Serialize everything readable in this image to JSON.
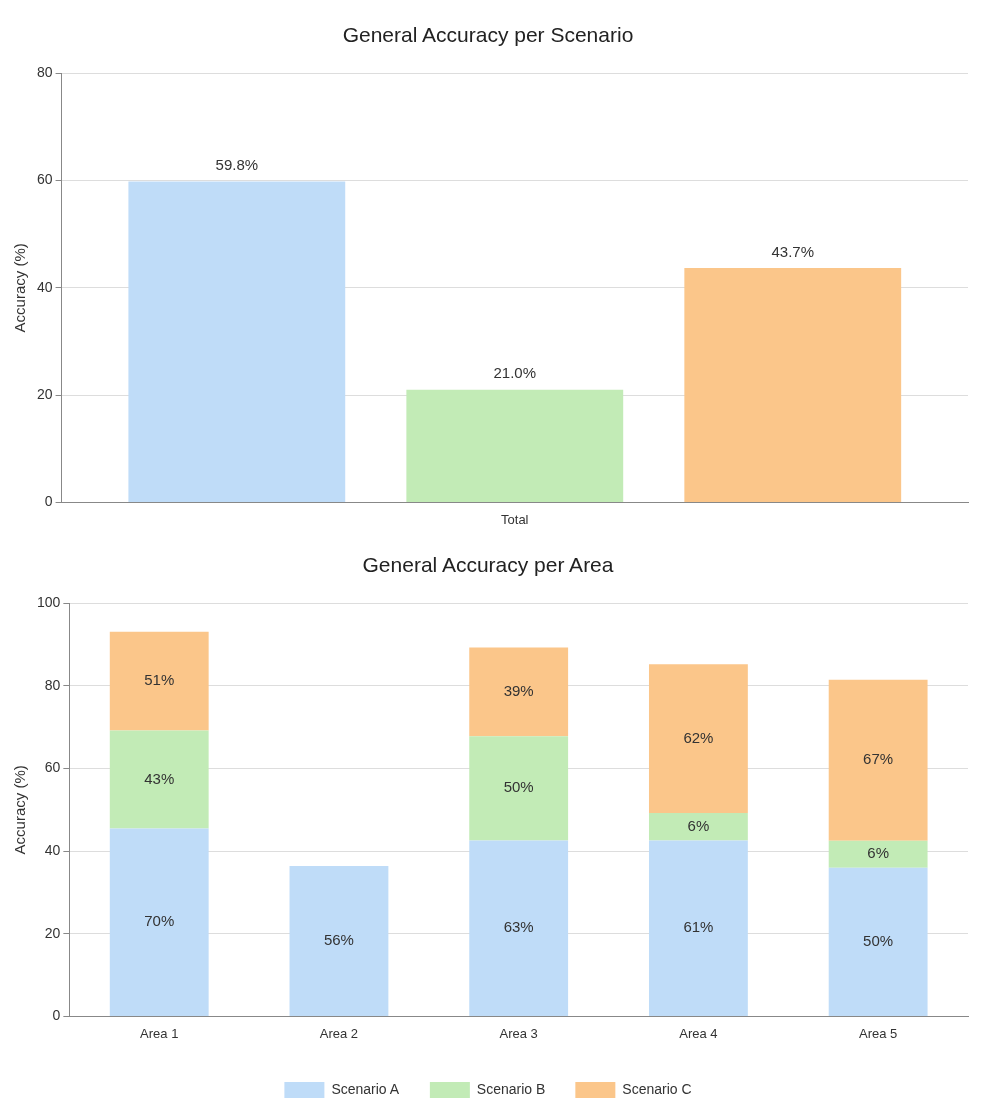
{
  "chart_data": [
    {
      "type": "bar",
      "title": "General Accuracy per Scenario",
      "ylabel": "Accuracy (%)",
      "categories": [
        "Total"
      ],
      "ylim": [
        0,
        80
      ],
      "yticks": [
        0,
        20,
        40,
        60,
        80
      ],
      "grid": "y",
      "legend": false,
      "series": [
        {
          "color": "#bfdcf8",
          "values": [
            59.8
          ],
          "value_labels": [
            "59.8%"
          ]
        },
        {
          "color": "#c2ebb6",
          "values": [
            21.0
          ],
          "value_labels": [
            "21.0%"
          ]
        },
        {
          "color": "#fbc68a",
          "values": [
            43.7
          ],
          "value_labels": [
            "43.7%"
          ]
        }
      ]
    },
    {
      "type": "bar",
      "title": "General Accuracy per Area",
      "ylabel": "Accuracy (%)",
      "categories": [
        "Area 1",
        "Area 2",
        "Area 3",
        "Area 4",
        "Area 5"
      ],
      "ylim": [
        0,
        100
      ],
      "yticks": [
        0,
        20,
        40,
        60,
        80,
        100
      ],
      "grid": "y",
      "legend": "bottom",
      "stacked": true,
      "series": [
        {
          "name": "Scenario A",
          "color": "#bfdcf8",
          "values": [
            45.5,
            36.4,
            42.6,
            42.6,
            36.0
          ]
        },
        {
          "name": "Scenario B",
          "color": "#c2ebb6",
          "values": [
            23.7,
            null,
            25.2,
            6.6,
            6.5
          ]
        },
        {
          "name": "Scenario C",
          "color": "#fbc68a",
          "values": [
            23.9,
            null,
            21.5,
            36.0,
            39.0
          ]
        }
      ],
      "annotations": [
        "70%",
        "43%",
        "51%",
        "56%",
        "63%",
        "50%",
        "39%",
        "61%",
        "6%",
        "62%",
        "50%",
        "6%",
        "67%"
      ]
    }
  ]
}
